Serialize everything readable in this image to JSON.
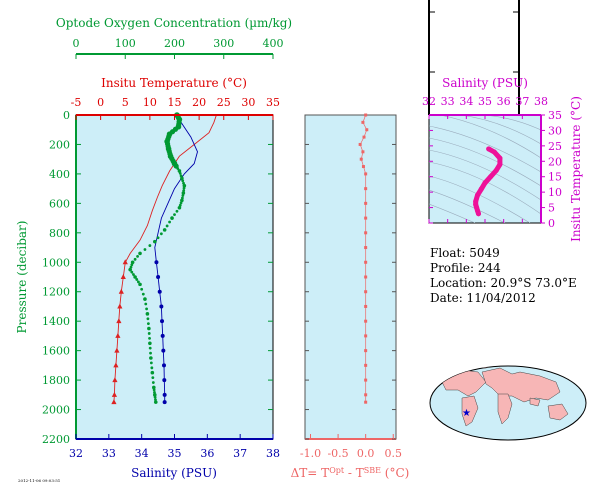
{
  "chart_data": [
    {
      "type": "line",
      "panel": "profile",
      "pressure_axis": {
        "label": "Pressure (decibar)",
        "ticks": [
          0,
          200,
          400,
          600,
          800,
          1000,
          1200,
          1400,
          1600,
          1800,
          2000,
          2200
        ],
        "range": [
          0,
          2200
        ],
        "inverted": true
      },
      "temperature_axis": {
        "label": "Insitu Temperature (°C)",
        "ticks": [
          -5,
          0,
          5,
          10,
          15,
          20,
          25,
          30,
          35
        ],
        "range": [
          -5,
          35
        ],
        "position": "top",
        "color": "#dd0000"
      },
      "oxygen_axis": {
        "label": "Optode Oxygen Concentration (µm/kg)",
        "ticks": [
          0,
          100,
          200,
          300,
          400
        ],
        "range": [
          0,
          400
        ],
        "position": "top",
        "color": "#009933"
      },
      "salinity_axis": {
        "label": "Salinity (PSU)",
        "ticks": [
          32,
          33,
          34,
          35,
          36,
          37,
          38
        ],
        "range": [
          32,
          38
        ],
        "position": "bottom",
        "color": "#0000aa"
      },
      "series": [
        {
          "quantity": "temperature",
          "color": "#dd2222",
          "points": [
            [
              23.5,
              0
            ],
            [
              23,
              50
            ],
            [
              22,
              120
            ],
            [
              19,
              200
            ],
            [
              16,
              280
            ],
            [
              14,
              380
            ],
            [
              12.5,
              480
            ],
            [
              11.5,
              560
            ],
            [
              10.5,
              650
            ],
            [
              9.5,
              750
            ],
            [
              8,
              850
            ],
            [
              6,
              940
            ],
            [
              5,
              1000
            ],
            [
              4.6,
              1100
            ],
            [
              4.2,
              1200
            ],
            [
              3.9,
              1300
            ],
            [
              3.7,
              1400
            ],
            [
              3.5,
              1500
            ],
            [
              3.3,
              1600
            ],
            [
              3.1,
              1700
            ],
            [
              2.9,
              1800
            ],
            [
              2.8,
              1900
            ],
            [
              2.7,
              1950
            ]
          ]
        },
        {
          "quantity": "salinity",
          "color": "#0000aa",
          "points": [
            [
              35.1,
              0
            ],
            [
              35.2,
              50
            ],
            [
              35.5,
              150
            ],
            [
              35.7,
              250
            ],
            [
              35.6,
              330
            ],
            [
              35.3,
              400
            ],
            [
              35.0,
              500
            ],
            [
              34.8,
              600
            ],
            [
              34.6,
              700
            ],
            [
              34.5,
              800
            ],
            [
              34.4,
              900
            ],
            [
              34.45,
              1000
            ],
            [
              34.5,
              1100
            ],
            [
              34.55,
              1200
            ],
            [
              34.6,
              1300
            ],
            [
              34.62,
              1400
            ],
            [
              34.64,
              1500
            ],
            [
              34.66,
              1600
            ],
            [
              34.68,
              1700
            ],
            [
              34.69,
              1800
            ],
            [
              34.7,
              1900
            ],
            [
              34.7,
              1950
            ]
          ]
        },
        {
          "quantity": "oxygen",
          "color": "#009933",
          "points": [
            [
              205,
              0
            ],
            [
              210,
              30
            ],
            [
              208,
              80
            ],
            [
              190,
              130
            ],
            [
              185,
              180
            ],
            [
              188,
              230
            ],
            [
              192,
              280
            ],
            [
              200,
              330
            ],
            [
              210,
              380
            ],
            [
              215,
              430
            ],
            [
              220,
              480
            ],
            [
              218,
              530
            ],
            [
              215,
              580
            ],
            [
              210,
              630
            ],
            [
              195,
              700
            ],
            [
              180,
              780
            ],
            [
              160,
              860
            ],
            [
              130,
              940
            ],
            [
              115,
              1000
            ],
            [
              110,
              1050
            ],
            [
              120,
              1100
            ],
            [
              130,
              1150
            ],
            [
              140,
              1250
            ],
            [
              145,
              1350
            ],
            [
              148,
              1450
            ],
            [
              150,
              1550
            ],
            [
              152,
              1650
            ],
            [
              155,
              1750
            ],
            [
              158,
              1850
            ],
            [
              160,
              1900
            ],
            [
              162,
              1950
            ]
          ]
        }
      ]
    },
    {
      "type": "scatter",
      "panel": "temperature-difference",
      "xlabel": "ΔT= T^Opt - T^SBE (°C)",
      "x_ticks": [
        "-1.0",
        "-0.5",
        "0.0",
        "0.5"
      ],
      "xlim": [
        -1.1,
        0.55
      ],
      "color": "#ee6666",
      "points": [
        [
          0,
          0
        ],
        [
          -0.05,
          50
        ],
        [
          0.02,
          100
        ],
        [
          -0.03,
          150
        ],
        [
          -0.1,
          200
        ],
        [
          -0.05,
          250
        ],
        [
          -0.08,
          300
        ],
        [
          -0.04,
          350
        ],
        [
          0,
          400
        ],
        [
          0,
          500
        ],
        [
          0,
          600
        ],
        [
          0,
          700
        ],
        [
          0,
          800
        ],
        [
          0,
          900
        ],
        [
          0,
          1000
        ],
        [
          0,
          1100
        ],
        [
          0,
          1200
        ],
        [
          0,
          1300
        ],
        [
          0,
          1400
        ],
        [
          0,
          1500
        ],
        [
          0,
          1600
        ],
        [
          0,
          1700
        ],
        [
          0,
          1800
        ],
        [
          0,
          1900
        ],
        [
          0,
          1950
        ]
      ]
    },
    {
      "type": "scatter",
      "panel": "T-S diagram",
      "xlabel": "Salinity (PSU)",
      "ylabel": "Insitu Temperature (°C)",
      "x_ticks": [
        32,
        33,
        34,
        35,
        36,
        37,
        38
      ],
      "y_ticks": [
        0,
        5,
        10,
        15,
        20,
        25,
        30,
        35
      ],
      "xlim": [
        32,
        38
      ],
      "ylim": [
        0,
        35
      ],
      "color": "#ee1199",
      "points": [
        [
          35.2,
          24
        ],
        [
          35.5,
          23
        ],
        [
          35.8,
          21
        ],
        [
          35.8,
          19
        ],
        [
          35.6,
          17
        ],
        [
          35.3,
          15
        ],
        [
          35,
          13
        ],
        [
          34.8,
          11
        ],
        [
          34.6,
          9
        ],
        [
          34.5,
          7
        ],
        [
          34.5,
          6
        ],
        [
          34.55,
          5
        ],
        [
          34.6,
          4
        ],
        [
          34.65,
          3
        ]
      ]
    }
  ],
  "float_info": {
    "float": "Float:  5049",
    "profile": "Profile:  244",
    "location": "Location:  20.9°S  73.0°E",
    "date": "Date:  11/04/2012"
  },
  "stamp_text": "2012-11-06 09:03:51",
  "colors": {
    "panel_bg": "#cdeef8",
    "temperature": "#dd0000",
    "oxygen": "#009933",
    "salinity": "#0000aa",
    "delta": "#ee6666",
    "ts": "#ee1199",
    "ts_axis": "#cc00cc",
    "land": "#f7b6b6",
    "ocean": "#cdeef8",
    "float_marker": "#0000cc"
  }
}
